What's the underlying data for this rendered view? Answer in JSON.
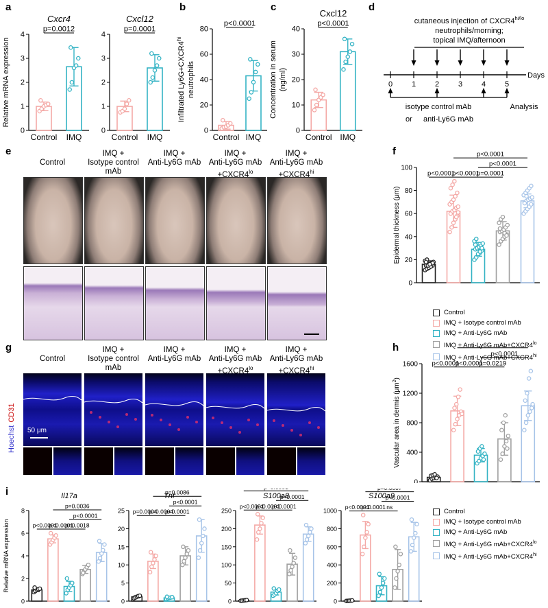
{
  "panels": {
    "a": "a",
    "b": "b",
    "c": "c",
    "d": "d",
    "e": "e",
    "f": "f",
    "g": "g",
    "h": "h",
    "i": "i"
  },
  "colors": {
    "control": "#f4a9a6",
    "imq": "#33b3c4",
    "c0": "#222222",
    "c1": "#f4a9a6",
    "c2": "#33b3c4",
    "c3": "#a0a0a0",
    "c4": "#a7c4e8"
  },
  "groups5": [
    "Control",
    "IMQ + Isotype control mAb",
    "IMQ + Anti-Ly6G mAb",
    "IMQ + Anti-Ly6G mAb+CXCR4",
    "IMQ + Anti-Ly6G mAb+CXCR4"
  ],
  "group_sup": [
    "",
    "",
    "",
    "lo",
    "hi"
  ],
  "e_headers": [
    {
      "l1": "Control",
      "l2": "",
      "l3": "",
      "sup": ""
    },
    {
      "l1": "IMQ +",
      "l2": "Isotype control mAb",
      "l3": "",
      "sup": ""
    },
    {
      "l1": "IMQ +",
      "l2": "Anti-Ly6G mAb",
      "l3": "",
      "sup": ""
    },
    {
      "l1": "IMQ +",
      "l2": "Anti-Ly6G mAb",
      "l3": "+CXCR4",
      "sup": "lo"
    },
    {
      "l1": "IMQ +",
      "l2": "Anti-Ly6G mAb",
      "l3": "+CXCR4",
      "sup": "hi"
    }
  ],
  "g_labels": {
    "hoechst": "Hoechst",
    "cd31": "CD31",
    "scalebar": "50 μm"
  },
  "d_schematic": {
    "title1": "cutaneous injection of CXCR4",
    "title_sup": "hi/lo",
    "title2": "neutrophils/morning;",
    "title3": "topical IMQ/afternoon",
    "days": [
      "0",
      "1",
      "2",
      "3",
      "4",
      "5"
    ],
    "axis_label": "Days",
    "iso": "isotype control mAb",
    "or": "or",
    "anti": "anti-Ly6G mAb",
    "analysis": "Analysis"
  },
  "chart_data": [
    {
      "id": "a1",
      "type": "bar",
      "title": "Cxcr4",
      "ylabel": "Relative mRNA expression",
      "categories": [
        "Control",
        "IMQ"
      ],
      "ylim": [
        0,
        4
      ],
      "yticks": [
        0,
        1,
        2,
        3,
        4
      ],
      "values": [
        1.0,
        2.65
      ],
      "errors": [
        0.18,
        0.8
      ],
      "points": [
        [
          0.8,
          0.9,
          1.0,
          1.05,
          1.1,
          1.25
        ],
        [
          1.7,
          2.0,
          2.6,
          2.7,
          3.0,
          3.45
        ]
      ],
      "comparisons": [
        {
          "a": 0,
          "b": 1,
          "label": "p=0.0012"
        }
      ]
    },
    {
      "id": "a2",
      "type": "bar",
      "title": "Cxcl12",
      "ylabel": "",
      "categories": [
        "Control",
        "IMQ"
      ],
      "ylim": [
        0,
        4
      ],
      "yticks": [
        0,
        1,
        2,
        3,
        4
      ],
      "values": [
        1.0,
        2.6
      ],
      "errors": [
        0.22,
        0.55
      ],
      "points": [
        [
          0.75,
          0.8,
          0.9,
          1.1,
          1.25
        ],
        [
          2.0,
          2.2,
          2.5,
          2.7,
          3.0,
          3.2
        ]
      ],
      "comparisons": [
        {
          "a": 0,
          "b": 1,
          "label": "p=0.0001"
        }
      ]
    },
    {
      "id": "b",
      "type": "bar",
      "title": "",
      "ylabel": "Infiltrated Ly6G+CXCR4",
      "ylabel_sup": "hi",
      "ylabel2": "neutrophils",
      "categories": [
        "Control",
        "IMQ"
      ],
      "ylim": [
        0,
        80
      ],
      "yticks": [
        0,
        20,
        40,
        60,
        80
      ],
      "values": [
        4,
        43
      ],
      "errors": [
        3,
        12
      ],
      "points": [
        [
          1.5,
          2.5,
          3,
          4,
          5.5,
          8
        ],
        [
          25,
          30,
          38,
          46,
          52,
          56
        ]
      ],
      "comparisons": [
        {
          "a": 0,
          "b": 1,
          "label": "p<0.0001"
        }
      ]
    },
    {
      "id": "c",
      "type": "bar",
      "title": "Cxcl12",
      "ylabel": "Concentration in serum",
      "ylabel2": "(ng/ml)",
      "categories": [
        "Control",
        "IMQ"
      ],
      "ylim": [
        0,
        40
      ],
      "yticks": [
        0,
        10,
        20,
        30,
        40
      ],
      "values": [
        12,
        31
      ],
      "errors": [
        3,
        5
      ],
      "points": [
        [
          8,
          10,
          12,
          13,
          14,
          16
        ],
        [
          24,
          27,
          29,
          31,
          34,
          36
        ]
      ],
      "comparisons": [
        {
          "a": 0,
          "b": 1,
          "label": "p<0.0001"
        }
      ]
    },
    {
      "id": "f",
      "type": "bar",
      "title": "",
      "ylabel": "Epidermal thickness (μm)",
      "categories": [
        "Control",
        "IMQ + Isotype control mAb",
        "IMQ + Anti-Ly6G mAb",
        "IMQ + Anti-Ly6G mAb+CXCR4lo",
        "IMQ + Anti-Ly6G mAb+CXCR4hi"
      ],
      "ylim": [
        0,
        100
      ],
      "yticks": [
        0,
        20,
        40,
        60,
        80,
        100
      ],
      "values": [
        16,
        62,
        29,
        45,
        71
      ],
      "errors": [
        3,
        14,
        6,
        8,
        6
      ],
      "points": [
        [
          11,
          12,
          13,
          14,
          15,
          15,
          16,
          16,
          17,
          18,
          19,
          20,
          13,
          14,
          17,
          18,
          15,
          16
        ],
        [
          44,
          48,
          52,
          55,
          58,
          60,
          62,
          63,
          65,
          66,
          68,
          70,
          72,
          75,
          78,
          82,
          85,
          88,
          57,
          61
        ],
        [
          20,
          22,
          24,
          26,
          28,
          29,
          30,
          31,
          32,
          34,
          36,
          38,
          25,
          27,
          30,
          33
        ],
        [
          33,
          36,
          38,
          40,
          42,
          44,
          45,
          46,
          48,
          50,
          52,
          55,
          57,
          43,
          41,
          47
        ],
        [
          60,
          62,
          64,
          66,
          68,
          70,
          71,
          72,
          73,
          74,
          76,
          78,
          80,
          82,
          84,
          69,
          75
        ]
      ],
      "comparisons": [
        {
          "a": 0,
          "b": 1,
          "label": "p<0.0001",
          "level": 0
        },
        {
          "a": 1,
          "b": 2,
          "label": "p<0.0001",
          "level": 0
        },
        {
          "a": 2,
          "b": 3,
          "label": "p=0.0001",
          "level": 0
        },
        {
          "a": 2,
          "b": 4,
          "label": "p<0.0001",
          "level": 1
        },
        {
          "a": 1,
          "b": 4,
          "label": "p<0.0001",
          "level": 2
        }
      ]
    },
    {
      "id": "h",
      "type": "bar",
      "title": "",
      "ylabel": "Vascular area in dermis (μm",
      "ylabel_sup": "2",
      "ylabel_end": ")",
      "categories": [
        "Control",
        "IMQ + Isotype control mAb",
        "IMQ + Anti-Ly6G mAb",
        "IMQ + Anti-Ly6G mAb+CXCR4lo",
        "IMQ + Anti-Ly6G mAb+CXCR4hi"
      ],
      "ylim": [
        0,
        1600
      ],
      "yticks": [
        0,
        400,
        800,
        1200,
        1600
      ],
      "values": [
        60,
        960,
        360,
        580,
        1030
      ],
      "errors": [
        30,
        200,
        90,
        220,
        200
      ],
      "points": [
        [
          20,
          40,
          50,
          60,
          70,
          80,
          90,
          100,
          50
        ],
        [
          700,
          780,
          850,
          900,
          950,
          1000,
          1050,
          1150,
          1250,
          920
        ],
        [
          250,
          280,
          320,
          350,
          380,
          410,
          450,
          480,
          300
        ],
        [
          300,
          380,
          480,
          550,
          620,
          700,
          800,
          900,
          450
        ],
        [
          700,
          800,
          900,
          950,
          1000,
          1100,
          1200,
          1400,
          1500,
          1050
        ]
      ],
      "comparisons": [
        {
          "a": 0,
          "b": 1,
          "label": "p<0.0001",
          "level": 0
        },
        {
          "a": 1,
          "b": 2,
          "label": "p<0.0001",
          "level": 0
        },
        {
          "a": 2,
          "b": 3,
          "label": "p=0.0219",
          "level": 0
        },
        {
          "a": 2,
          "b": 4,
          "label": "p<0.0001",
          "level": 1
        },
        {
          "a": 1,
          "b": 4,
          "label": "p<0.0001",
          "level": 2
        }
      ]
    },
    {
      "id": "i1",
      "type": "bar",
      "title": "Il17a",
      "ylabel": "Relative mRNA expression",
      "categories": [
        "Control",
        "IMQ + Isotype control mAb",
        "IMQ + Anti-Ly6G mAb",
        "IMQ + Anti-Ly6G mAb+CXCR4lo",
        "IMQ + Anti-Ly6G mAb+CXCR4hi"
      ],
      "ylim": [
        0,
        8
      ],
      "yticks": [
        0,
        2,
        4,
        6,
        8
      ],
      "values": [
        1.0,
        5.5,
        1.3,
        2.8,
        4.3
      ],
      "errors": [
        0.15,
        0.35,
        0.45,
        0.35,
        0.8
      ],
      "points": [
        [
          0.8,
          0.9,
          1.0,
          1.05,
          1.1,
          1.2
        ],
        [
          5.0,
          5.2,
          5.4,
          5.6,
          5.8,
          6.0
        ],
        [
          0.7,
          1.0,
          1.2,
          1.4,
          1.6,
          2.0
        ],
        [
          2.4,
          2.6,
          2.8,
          3.0,
          3.2,
          2.5
        ],
        [
          3.5,
          3.8,
          4.2,
          4.5,
          5.0,
          5.3
        ]
      ],
      "comparisons": [
        {
          "a": 0,
          "b": 1,
          "label": "p<0.0001",
          "level": 0
        },
        {
          "a": 1,
          "b": 2,
          "label": "p<0.0001",
          "level": 0
        },
        {
          "a": 2,
          "b": 3,
          "label": "p=0.0018",
          "level": 0
        },
        {
          "a": 2,
          "b": 4,
          "label": "p<0.0001",
          "level": 1
        },
        {
          "a": 1,
          "b": 4,
          "label": "p=0.0036",
          "level": 2
        }
      ]
    },
    {
      "id": "i2",
      "type": "bar",
      "title": "Tnf",
      "ylabel": "",
      "categories": [
        "Control",
        "IMQ + Isotype control mAb",
        "IMQ + Anti-Ly6G mAb",
        "IMQ + Anti-Ly6G mAb+CXCR4lo",
        "IMQ + Anti-Ly6G mAb+CXCR4hi"
      ],
      "ylim": [
        0,
        25
      ],
      "yticks": [
        0,
        5,
        10,
        15,
        20,
        25
      ],
      "values": [
        1.2,
        11,
        0.9,
        12.5,
        18
      ],
      "errors": [
        0.3,
        2,
        0.2,
        2.5,
        4.5
      ],
      "points": [
        [
          0.8,
          1.0,
          1.2,
          1.4,
          1.5
        ],
        [
          8,
          9.5,
          10.5,
          11.5,
          12.5,
          13.5
        ],
        [
          0.6,
          0.8,
          0.9,
          1.0,
          1.1,
          1.2
        ],
        [
          10,
          11,
          12,
          13,
          14,
          15
        ],
        [
          12,
          14,
          16,
          18,
          20,
          22.5
        ]
      ],
      "comparisons": [
        {
          "a": 0,
          "b": 1,
          "label": "p=0.0004",
          "level": 0
        },
        {
          "a": 1,
          "b": 2,
          "label": "p=0.0004",
          "level": 0
        },
        {
          "a": 2,
          "b": 3,
          "label": "p<0.0001",
          "level": 0
        },
        {
          "a": 2,
          "b": 4,
          "label": "p<0.0001",
          "level": 1
        },
        {
          "a": 1,
          "b": 4,
          "label": "p=0.0086",
          "level": 2
        }
      ]
    },
    {
      "id": "i3",
      "type": "bar",
      "title": "S100a8",
      "ylabel": "",
      "categories": [
        "Control",
        "IMQ + Isotype control mAb",
        "IMQ + Anti-Ly6G mAb",
        "IMQ + Anti-Ly6G mAb+CXCR4lo",
        "IMQ + Anti-Ly6G mAb+CXCR4hi"
      ],
      "ylim": [
        0,
        250
      ],
      "yticks": [
        0,
        50,
        100,
        150,
        200,
        250
      ],
      "values": [
        2,
        210,
        25,
        102,
        185
      ],
      "errors": [
        1,
        25,
        8,
        30,
        20
      ],
      "points": [
        [
          1,
          1.5,
          2,
          2.5,
          3
        ],
        [
          170,
          190,
          200,
          215,
          230,
          240
        ],
        [
          15,
          18,
          22,
          28,
          32,
          35
        ],
        [
          75,
          85,
          95,
          105,
          120,
          140
        ],
        [
          160,
          170,
          180,
          190,
          200,
          210
        ]
      ],
      "comparisons": [
        {
          "a": 0,
          "b": 1,
          "label": "p<0.0001",
          "level": 0
        },
        {
          "a": 1,
          "b": 2,
          "label": "p<0.0001",
          "level": 0
        },
        {
          "a": 2,
          "b": 3,
          "label": "p<0.0001",
          "level": 0
        },
        {
          "a": 2,
          "b": 4,
          "label": "p<0.0001",
          "level": 1
        },
        {
          "a": 0,
          "b": 4,
          "label": "p<0.0001",
          "level": 2
        }
      ]
    },
    {
      "id": "i4",
      "type": "bar",
      "title": "S100a9",
      "ylabel": "",
      "categories": [
        "Control",
        "IMQ + Isotype control mAb",
        "IMQ + Anti-Ly6G mAb",
        "IMQ + Anti-Ly6G mAb+CXCR4lo",
        "IMQ + Anti-Ly6G mAb+CXCR4hi"
      ],
      "ylim": [
        0,
        1000
      ],
      "yticks": [
        0,
        200,
        400,
        600,
        800,
        1000
      ],
      "values": [
        5,
        730,
        170,
        350,
        710
      ],
      "errors": [
        2,
        150,
        100,
        220,
        160
      ],
      "points": [
        [
          2,
          3,
          5,
          6,
          8
        ],
        [
          520,
          600,
          700,
          760,
          850,
          950
        ],
        [
          60,
          100,
          150,
          200,
          250,
          300
        ],
        [
          150,
          250,
          330,
          400,
          520,
          600
        ],
        [
          550,
          620,
          700,
          750,
          850,
          900
        ]
      ],
      "comparisons": [
        {
          "a": 0,
          "b": 1,
          "label": "p<0.0001",
          "level": 0
        },
        {
          "a": 1,
          "b": 2,
          "label": "p<0.0001",
          "level": 0
        },
        {
          "a": 2,
          "b": 3,
          "label": "ns",
          "level": 0
        },
        {
          "a": 2,
          "b": 4,
          "label": "p<0.0001",
          "level": 1
        },
        {
          "a": 1,
          "b": 4,
          "label": "p=0.0007",
          "level": 2
        }
      ]
    }
  ]
}
